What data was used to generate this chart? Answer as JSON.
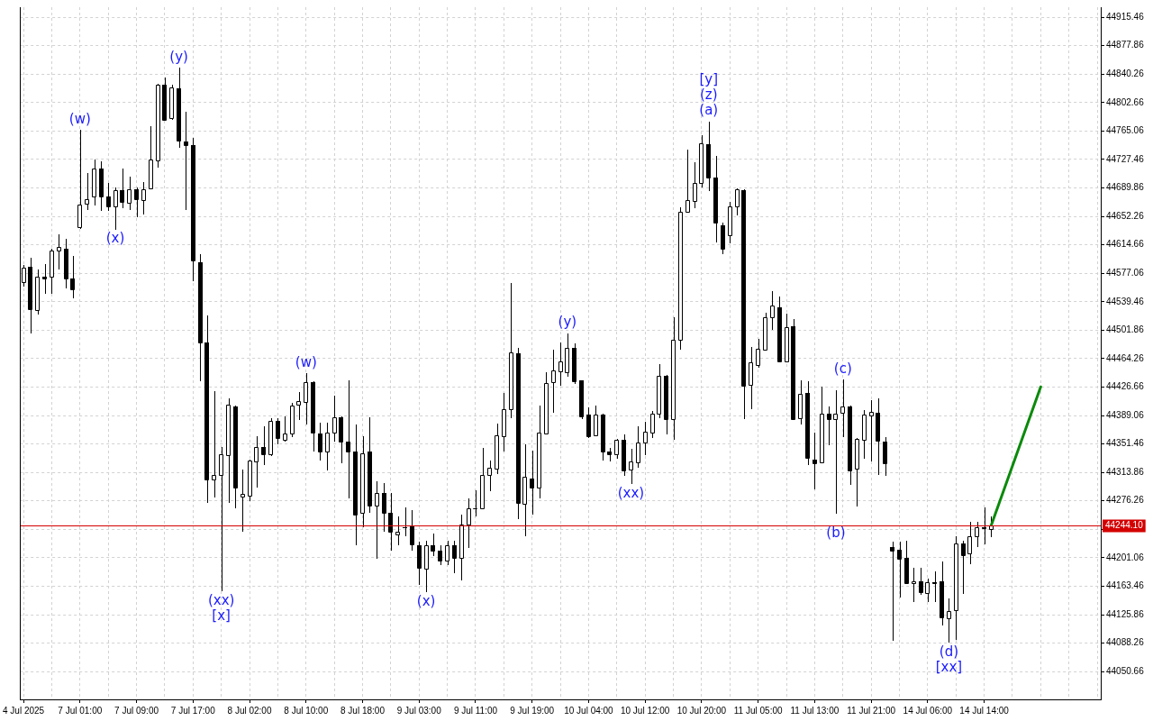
{
  "chart_data": {
    "type": "candlestick",
    "categories": [
      "4 Jul 2025",
      null,
      null,
      null,
      null,
      null,
      null,
      null,
      "7 Jul 01:00",
      null,
      null,
      null,
      null,
      null,
      null,
      null,
      "7 Jul 09:00",
      null,
      null,
      null,
      null,
      null,
      null,
      null,
      "7 Jul 17:00",
      null,
      null,
      null,
      null,
      null,
      null,
      null,
      "8 Jul 02:00",
      null,
      null,
      null,
      null,
      null,
      null,
      null,
      "8 Jul 10:00",
      null,
      null,
      null,
      null,
      null,
      null,
      null,
      "8 Jul 18:00",
      null,
      null,
      null,
      null,
      null,
      null,
      null,
      "9 Jul 03:00",
      null,
      null,
      null,
      null,
      null,
      null,
      null,
      "9 Jul 11:00",
      null,
      null,
      null,
      null,
      null,
      null,
      null,
      "9 Jul 19:00",
      null,
      null,
      null,
      null,
      null,
      null,
      null,
      "10 Jul 04:00",
      null,
      null,
      null,
      null,
      null,
      null,
      null,
      "10 Jul 12:00",
      null,
      null,
      null,
      null,
      null,
      null,
      null,
      "10 Jul 20:00",
      null,
      null,
      null,
      null,
      null,
      null,
      null,
      "11 Jul 05:00",
      null,
      null,
      null,
      null,
      null,
      null,
      null,
      "11 Jul 13:00",
      null,
      null,
      null,
      null,
      null,
      null,
      null,
      "11 Jul 21:00",
      null,
      null,
      null,
      null,
      null,
      null,
      null,
      "14 Jul 06:00",
      null,
      null,
      null,
      null,
      null,
      null,
      null,
      "14 Jul 14:00",
      null,
      null,
      null,
      null,
      null,
      null,
      null,
      null,
      null,
      null,
      null,
      null,
      null,
      null,
      null,
      null
    ],
    "ohlc": [
      [
        44565,
        44588,
        44560,
        44584
      ],
      [
        44586,
        44598,
        44497,
        44530
      ],
      [
        44528,
        44582,
        44523,
        44573
      ],
      [
        44573,
        44589,
        44550,
        44570
      ],
      [
        44572,
        44610,
        44550,
        44607
      ],
      [
        44607,
        44628,
        44582,
        44612
      ],
      [
        44609,
        44623,
        44557,
        44570
      ],
      [
        44570,
        44600,
        44544,
        44556
      ],
      [
        44638,
        44767,
        44636,
        44668
      ],
      [
        44669,
        44709,
        44661,
        44675
      ],
      [
        44678,
        44727,
        44667,
        44715
      ],
      [
        44715,
        44725,
        44659,
        44678
      ],
      [
        44678,
        44697,
        44659,
        44665
      ],
      [
        44665,
        44691,
        44635,
        44687
      ],
      [
        44687,
        44716,
        44663,
        44671
      ],
      [
        44670,
        44705,
        44661,
        44688
      ],
      [
        44688,
        44691,
        44651,
        44675
      ],
      [
        44674,
        44698,
        44655,
        44688
      ],
      [
        44689,
        44771,
        44689,
        44727
      ],
      [
        44726,
        44827,
        44717,
        44826
      ],
      [
        44826,
        44836,
        44779,
        44780
      ],
      [
        44782,
        44826,
        44780,
        44823
      ],
      [
        44821,
        44849,
        44743,
        44752
      ],
      [
        44751,
        44790,
        44661,
        44747
      ],
      [
        44746,
        44756,
        44567,
        44594
      ],
      [
        44592,
        44602,
        44434,
        44485
      ],
      [
        44486,
        44521,
        44273,
        44305
      ],
      [
        44304,
        44421,
        44281,
        44310
      ],
      [
        44310,
        44347,
        44157,
        44338
      ],
      [
        44337,
        44412,
        44273,
        44403
      ],
      [
        44401,
        44402,
        44266,
        44294
      ],
      [
        44282,
        44318,
        44236,
        44285
      ],
      [
        44283,
        44331,
        44276,
        44330
      ],
      [
        44328,
        44362,
        44294,
        44348
      ],
      [
        44348,
        44375,
        44324,
        44338
      ],
      [
        44338,
        44385,
        44335,
        44382
      ],
      [
        44382,
        44385,
        44351,
        44359
      ],
      [
        44357,
        44388,
        44355,
        44365
      ],
      [
        44365,
        44406,
        44361,
        44402
      ],
      [
        44403,
        44420,
        44383,
        44408
      ],
      [
        44407,
        44445,
        44377,
        44433
      ],
      [
        44433,
        44434,
        44341,
        44367
      ],
      [
        44365,
        44379,
        44330,
        44341
      ],
      [
        44342,
        44379,
        44316,
        44367
      ],
      [
        44367,
        44415,
        44355,
        44387
      ],
      [
        44387,
        44388,
        44326,
        44355
      ],
      [
        44355,
        44436,
        44280,
        44341
      ],
      [
        44342,
        44377,
        44218,
        44258
      ],
      [
        44261,
        44362,
        44242,
        44339
      ],
      [
        44341,
        44387,
        44260,
        44270
      ],
      [
        44270,
        44302,
        44200,
        44287
      ],
      [
        44287,
        44300,
        44235,
        44261
      ],
      [
        44261,
        44287,
        44211,
        44235
      ],
      [
        44232,
        44256,
        44218,
        44235
      ],
      [
        44242,
        44268,
        44230,
        44241
      ],
      [
        44243,
        44264,
        44210,
        44219
      ],
      [
        44218,
        44222,
        44165,
        44188
      ],
      [
        44187,
        44224,
        44156,
        44217
      ],
      [
        44217,
        44233,
        44203,
        44211
      ],
      [
        44211,
        44217,
        44191,
        44197
      ],
      [
        44197,
        44224,
        44191,
        44217
      ],
      [
        44217,
        44224,
        44181,
        44201
      ],
      [
        44201,
        44258,
        44171,
        44245
      ],
      [
        44245,
        44279,
        44214,
        44267
      ],
      [
        44266,
        44290,
        44256,
        44267
      ],
      [
        44267,
        44346,
        44266,
        44310
      ],
      [
        44310,
        44329,
        44289,
        44320
      ],
      [
        44319,
        44378,
        44312,
        44363
      ],
      [
        44362,
        44419,
        44341,
        44397
      ],
      [
        44398,
        44564,
        44385,
        44472
      ],
      [
        44471,
        44478,
        44252,
        44274
      ],
      [
        44272,
        44351,
        44229,
        44308
      ],
      [
        44306,
        44343,
        44258,
        44294
      ],
      [
        44294,
        44402,
        44279,
        44367
      ],
      [
        44365,
        44446,
        44364,
        44432
      ],
      [
        44433,
        44476,
        44393,
        44449
      ],
      [
        44448,
        44486,
        44429,
        44460
      ],
      [
        44446,
        44498,
        44440,
        44478
      ],
      [
        44478,
        44484,
        44431,
        44434
      ],
      [
        44435,
        44436,
        44384,
        44388
      ],
      [
        44390,
        44400,
        44359,
        44362
      ],
      [
        44363,
        44402,
        44362,
        44390
      ],
      [
        44390,
        44391,
        44329,
        44342
      ],
      [
        44342,
        44346,
        44328,
        44338
      ],
      [
        44338,
        44358,
        44332,
        44357
      ],
      [
        44357,
        44364,
        44309,
        44317
      ],
      [
        44318,
        44345,
        44299,
        44328
      ],
      [
        44327,
        44375,
        44320,
        44353
      ],
      [
        44353,
        44381,
        44337,
        44368
      ],
      [
        44367,
        44395,
        44359,
        44391
      ],
      [
        44391,
        44457,
        44385,
        44442
      ],
      [
        44442,
        44443,
        44364,
        44384
      ],
      [
        44384,
        44519,
        44357,
        44489
      ],
      [
        44489,
        44664,
        44476,
        44658
      ],
      [
        44658,
        44741,
        44657,
        44674
      ],
      [
        44673,
        44724,
        44663,
        44696
      ],
      [
        44696,
        44760,
        44690,
        44749
      ],
      [
        44748,
        44778,
        44686,
        44703
      ],
      [
        44703,
        44732,
        44618,
        44644
      ],
      [
        44640,
        44644,
        44602,
        44609
      ],
      [
        44627,
        44671,
        44617,
        44666
      ],
      [
        44666,
        44689,
        44653,
        44688
      ],
      [
        44687,
        44688,
        44384,
        44429
      ],
      [
        44430,
        44480,
        44398,
        44459
      ],
      [
        44456,
        44490,
        44452,
        44477
      ],
      [
        44476,
        44525,
        44475,
        44519
      ],
      [
        44519,
        44554,
        44502,
        44534
      ],
      [
        44532,
        44546,
        44459,
        44460
      ],
      [
        44461,
        44524,
        44459,
        44506
      ],
      [
        44507,
        44517,
        44383,
        44384
      ],
      [
        44386,
        44435,
        44377,
        44418
      ],
      [
        44419,
        44434,
        44324,
        44333
      ],
      [
        44331,
        44367,
        44292,
        44326
      ],
      [
        44327,
        44427,
        44326,
        44392
      ],
      [
        44392,
        44401,
        44350,
        44384
      ],
      [
        44384,
        44422,
        44259,
        44391
      ],
      [
        44393,
        44437,
        44361,
        44401
      ],
      [
        44401,
        44402,
        44297,
        44317
      ],
      [
        44319,
        44359,
        44269,
        44358
      ],
      [
        44357,
        44396,
        44332,
        44390
      ],
      [
        44389,
        44409,
        44328,
        44394
      ],
      [
        44393,
        44412,
        44310,
        44356
      ],
      [
        44354,
        44361,
        44309,
        44326
      ],
      [
        44215,
        44222,
        44091,
        44211
      ],
      [
        44212,
        44222,
        44149,
        44200
      ],
      [
        44201,
        44223,
        44166,
        44167
      ],
      [
        44167,
        44188,
        44142,
        44170
      ],
      [
        44170,
        44188,
        44152,
        44156
      ],
      [
        44155,
        44174,
        44143,
        44169
      ],
      [
        44169,
        44183,
        44143,
        44168
      ],
      [
        44170,
        44196,
        44112,
        44122
      ],
      [
        44121,
        44147,
        44089,
        44131
      ],
      [
        44132,
        44230,
        44092,
        44220
      ],
      [
        44220,
        44223,
        44153,
        44205
      ],
      [
        44207,
        44248,
        44192,
        44230
      ],
      [
        44230,
        44248,
        44215,
        44242
      ],
      [
        44242,
        44268,
        44219,
        44240
      ],
      [
        44239,
        44256,
        44228,
        44244.1
      ],
      null,
      null,
      null,
      null,
      null,
      null,
      null,
      null,
      null,
      null,
      null,
      null,
      null,
      null,
      null
    ],
    "series": [
      {
        "type": "line",
        "color": "#0b8a0b",
        "values": [
          null,
          null,
          null,
          null,
          null,
          null,
          null,
          null,
          null,
          null,
          null,
          null,
          null,
          null,
          null,
          null,
          null,
          null,
          null,
          null,
          null,
          null,
          null,
          null,
          null,
          null,
          null,
          null,
          null,
          null,
          null,
          null,
          null,
          null,
          null,
          null,
          null,
          null,
          null,
          null,
          null,
          null,
          null,
          null,
          null,
          null,
          null,
          null,
          null,
          null,
          null,
          null,
          null,
          null,
          null,
          null,
          null,
          null,
          null,
          null,
          null,
          null,
          null,
          null,
          null,
          null,
          null,
          null,
          null,
          null,
          null,
          null,
          null,
          null,
          null,
          null,
          null,
          null,
          null,
          null,
          null,
          null,
          null,
          null,
          null,
          null,
          null,
          null,
          null,
          null,
          null,
          null,
          null,
          null,
          null,
          null,
          null,
          null,
          null,
          null,
          null,
          null,
          null,
          null,
          null,
          null,
          null,
          null,
          null,
          null,
          null,
          null,
          null,
          null,
          null,
          null,
          null,
          null,
          null,
          null,
          null,
          null,
          null,
          null,
          null,
          null,
          null,
          null,
          null,
          null,
          null,
          null,
          null,
          null,
          null,
          null,
          null,
          44244,
          null,
          null,
          null,
          null,
          null,
          null,
          44427,
          null,
          null,
          null,
          null,
          null,
          null,
          null,
          null
        ]
      }
    ],
    "ylim": [
      44013.9,
      44928.7
    ],
    "yticks": [
      44050.66,
      44088.26,
      44125.86,
      44163.46,
      44201.06,
      {
        "value": 44238.66,
        "label": null
      },
      44276.26,
      44313.86,
      44351.46,
      44389.06,
      44426.66,
      44464.26,
      44501.86,
      44539.46,
      44577.06,
      44614.66,
      44652.26,
      44689.86,
      44727.46,
      44765.06,
      44802.66,
      44840.26,
      44877.86,
      44915.46
    ],
    "grid": true,
    "ref_lines": [
      {
        "axis": "y",
        "value": 44244.1,
        "label": "44244.10",
        "color": "#d40000"
      }
    ],
    "annotations": [
      {
        "text": "(w)",
        "x": "7 Jul 01:00",
        "y": 44767
      },
      {
        "text": "(x)",
        "y": 44635
      },
      {
        "text": "(y)",
        "y": 44849
      },
      {
        "text": "(xx)",
        "y": 44157
      },
      {
        "text": "[x]",
        "y": 44157
      },
      {
        "text": "(w)",
        "x": "8 Jul 10:00",
        "y": 44445
      },
      {
        "text": "(x)",
        "y": 44156
      },
      {
        "text": "(y)",
        "y": 44498
      },
      {
        "text": "(xx)",
        "y": 44299
      },
      {
        "text": "(a)",
        "y": 44778
      },
      {
        "text": "(z)",
        "y": 44778
      },
      {
        "text": "[y]",
        "y": 44778
      },
      {
        "text": "(c)",
        "y": 44437
      },
      {
        "text": "(b)",
        "y": 44259
      },
      {
        "text": "(d)",
        "y": 44089
      },
      {
        "text": "[xx]",
        "y": 44089
      }
    ]
  }
}
